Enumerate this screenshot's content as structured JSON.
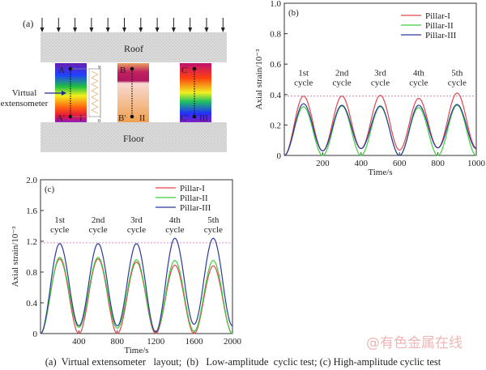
{
  "diagram": {
    "panel_label": "(a)",
    "roof": "Roof",
    "floor": "Floor",
    "virtual_extensometer": [
      "Virtual",
      "extensometer"
    ],
    "pillars": [
      {
        "top": "A",
        "bottom": "A'",
        "roman": "I"
      },
      {
        "top": "B",
        "bottom": "B'",
        "roman": "II"
      },
      {
        "top": "C",
        "bottom": "C'",
        "roman": "III"
      }
    ],
    "gauge_top": "y",
    "gauge_bottom": "0"
  },
  "caption": "(a)  Virtual extensometer   layout;  (b)   Low-amplitude  cyclic test; (c) High-amplitude cyclic test",
  "watermark": "@有色金属在线",
  "chart_data": [
    {
      "type": "line",
      "panel_label": "(b)",
      "xlabel": "Time/s",
      "ylabel": "Axial strain/10⁻³",
      "xlim": [
        0,
        1000
      ],
      "ylim": [
        0,
        1.0
      ],
      "xticks": [
        200,
        400,
        600,
        800,
        1000
      ],
      "yticks": [
        0,
        0.2,
        0.4,
        0.6,
        0.8,
        1.0
      ],
      "ytick_labels": [
        "0",
        "0.2",
        "0.4",
        "0.6",
        "0.8",
        "1.0"
      ],
      "legend": "top-right",
      "reference_line": 0.39,
      "annotations": [
        {
          "x": 100,
          "lines": [
            "1st",
            "cycle"
          ]
        },
        {
          "x": 300,
          "lines": [
            "2nd",
            "cycle"
          ]
        },
        {
          "x": 500,
          "lines": [
            "3rd",
            "cycle"
          ]
        },
        {
          "x": 700,
          "lines": [
            "4th",
            "cycle"
          ]
        },
        {
          "x": 900,
          "lines": [
            "5th",
            "cycle"
          ]
        }
      ],
      "x": [
        0,
        100,
        200,
        300,
        400,
        500,
        600,
        700,
        800,
        900,
        1000
      ],
      "series": [
        {
          "name": "Pillar-I",
          "color": "#e0474c",
          "values": [
            0,
            0.39,
            0.03,
            0.39,
            0.045,
            0.395,
            0.035,
            0.375,
            0.05,
            0.41,
            0.05
          ]
        },
        {
          "name": "Pillar-II",
          "color": "#3ecf3e",
          "values": [
            0,
            0.32,
            0,
            0.325,
            0,
            0.32,
            0,
            0.315,
            0,
            0.33,
            0
          ]
        },
        {
          "name": "Pillar-III",
          "color": "#2b3a9a",
          "values": [
            0,
            0.34,
            0.03,
            0.33,
            0.045,
            0.325,
            0,
            0.33,
            0.05,
            0.335,
            0.045
          ]
        }
      ]
    },
    {
      "type": "line",
      "panel_label": "(c)",
      "xlabel": "Time/s",
      "ylabel": "Axial strain/10⁻³",
      "xlim": [
        0,
        2000
      ],
      "ylim": [
        0,
        2.0
      ],
      "xticks": [
        400,
        800,
        1200,
        1600,
        2000
      ],
      "yticks": [
        0,
        0.4,
        0.8,
        1.2,
        1.6,
        2.0
      ],
      "ytick_labels": [
        "0",
        "0.4",
        "0.8",
        "1.2",
        "1.6",
        "2.0"
      ],
      "legend": "top-right",
      "reference_line": 1.18,
      "annotations": [
        {
          "x": 200,
          "lines": [
            "1st",
            "cycle"
          ]
        },
        {
          "x": 600,
          "lines": [
            "2nd",
            "cycle"
          ]
        },
        {
          "x": 1000,
          "lines": [
            "3rd",
            "cycle"
          ]
        },
        {
          "x": 1400,
          "lines": [
            "4th",
            "cycle"
          ]
        },
        {
          "x": 1800,
          "lines": [
            "5th",
            "cycle"
          ]
        }
      ],
      "x": [
        0,
        200,
        400,
        600,
        800,
        1000,
        1200,
        1400,
        1600,
        1800,
        2000
      ],
      "series": [
        {
          "name": "Pillar-I",
          "color": "#e0474c",
          "values": [
            0,
            0.97,
            0,
            0.97,
            0,
            0.93,
            0,
            0.89,
            0,
            0.88,
            0
          ]
        },
        {
          "name": "Pillar-II",
          "color": "#3ecf3e",
          "values": [
            0,
            0.99,
            0.08,
            0.99,
            0.07,
            0.96,
            0.02,
            0.95,
            0.03,
            0.95,
            0
          ]
        },
        {
          "name": "Pillar-III",
          "color": "#2b3a9a",
          "values": [
            0,
            1.17,
            0.1,
            1.17,
            0.1,
            1.17,
            0.02,
            1.24,
            0.12,
            1.24,
            0.1
          ]
        }
      ]
    }
  ]
}
